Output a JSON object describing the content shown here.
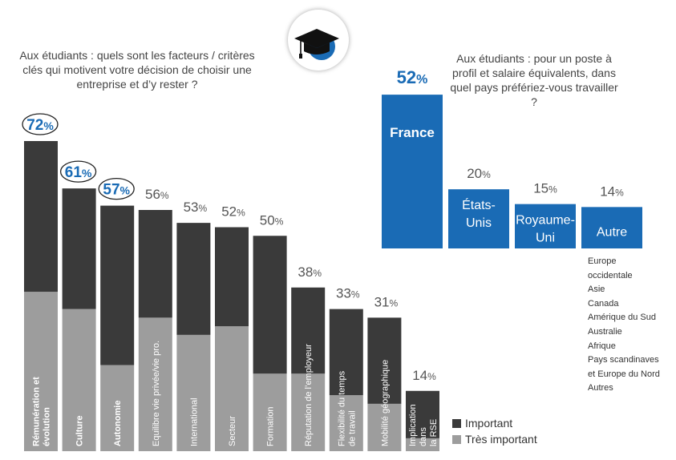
{
  "left_title": "Aux étudiants : quels sont les facteurs / critères clés qui motivent votre décision de choisir une entreprise et d’y rester ?",
  "right_title": "Aux étudiants : pour un poste à profil et salaire équivalents, dans quel pays préfériez-vous travailler ?",
  "logo_icon": "graduation-cap-icon",
  "colors": {
    "important": "#3a3a3a",
    "tres_important": "#9d9d9d",
    "blue": "#1a6bb5",
    "circle": "#222222"
  },
  "legend": {
    "important": "Important",
    "tres_important": "Très important"
  },
  "chart_data": [
    {
      "type": "bar",
      "stacked": true,
      "title": "Aux étudiants : quels sont les facteurs / critères clés qui motivent votre décision de choisir une entreprise et d’y rester ?",
      "categories": [
        "Rémunération et évolution",
        "Culture",
        "Autonomie",
        "Equilibre vie privée/vie pro.",
        "International",
        "Secteur",
        "Formation",
        "Réputation de l’employeur",
        "Flexibilité du temps de travail",
        "Mobilité géographique",
        "Implication dans la RSE"
      ],
      "category_labels": [
        [
          "Rémunération et",
          "évolution"
        ],
        [
          "Culture"
        ],
        [
          "Autonomie"
        ],
        [
          "Equilibre vie privée/vie pro."
        ],
        [
          "International"
        ],
        [
          "Secteur"
        ],
        [
          "Formation"
        ],
        [
          "Réputation de l’employeur"
        ],
        [
          "Flexibilité du temps",
          "de travail"
        ],
        [
          "Mobilité géographique"
        ],
        [
          "Implication",
          "dans",
          "la RSE"
        ]
      ],
      "bold_categories": [
        0,
        1,
        2
      ],
      "totals": [
        72,
        61,
        57,
        56,
        53,
        52,
        50,
        38,
        33,
        31,
        14
      ],
      "total_labels": [
        "72%",
        "61%",
        "57%",
        "56%",
        "53%",
        "52%",
        "50%",
        "38%",
        "33%",
        "31%",
        "14%"
      ],
      "highlighted": [
        0,
        1,
        2
      ],
      "series": [
        {
          "name": "Très important",
          "values": [
            37,
            33,
            20,
            31,
            27,
            29,
            18,
            18,
            13,
            11,
            3
          ]
        },
        {
          "name": "Important",
          "values": [
            35,
            28,
            37,
            25,
            26,
            23,
            32,
            20,
            20,
            20,
            11
          ]
        }
      ],
      "legend_position": "bottom-right"
    },
    {
      "type": "bar",
      "title": "Aux étudiants : pour un poste à profil et salaire équivalents, dans quel pays préfériez-vous travailler ?",
      "categories": [
        "France",
        "États-Unis",
        "Royaume-Uni",
        "Autre"
      ],
      "category_labels": [
        [
          "France"
        ],
        [
          "États-",
          "Unis"
        ],
        [
          "Royaume-",
          "Uni"
        ],
        [
          "Autre"
        ]
      ],
      "values": [
        52,
        20,
        15,
        14
      ],
      "value_labels": [
        "52%",
        "20%",
        "15%",
        "14%"
      ],
      "autre_detail": [
        "Europe",
        "occidentale",
        "Asie",
        "Canada",
        "Amérique du Sud",
        "Australie",
        "Afrique",
        "Pays scandinaves",
        "et Europe du Nord",
        "Autres"
      ]
    }
  ]
}
